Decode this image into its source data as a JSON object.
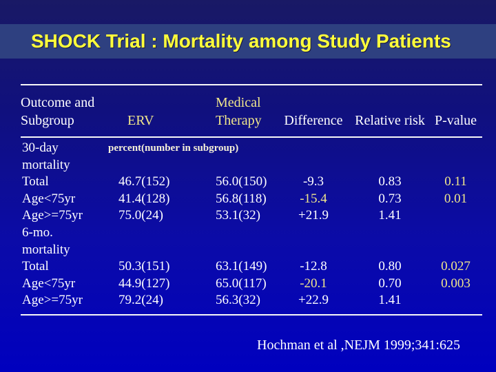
{
  "colors": {
    "background_top": "#191965",
    "background_bottom": "#0000bf",
    "title_bar": "#2e4080",
    "title_text": "#ffff3b",
    "table_text": "#ffffff",
    "accent_text": "#f0e68c",
    "note_text": "#f5f0d8"
  },
  "title": "SHOCK Trial : Mortality among Study Patients",
  "table": {
    "headers": {
      "outcome_line1": "Outcome and",
      "outcome_line2": "Subgroup",
      "erv": "ERV",
      "medical_line1": "Medical",
      "medical_line2": "Therapy",
      "difference": "Difference",
      "relative_risk": "Relative risk",
      "p_value": "P-value"
    },
    "unit_note": "percent(number in subgroup)",
    "rows": [
      {
        "label": "30-day",
        "erv": "",
        "medical": "",
        "difference": "",
        "relative_risk": "",
        "p_value": ""
      },
      {
        "label": "mortality",
        "erv": "",
        "medical": "",
        "difference": "",
        "relative_risk": "",
        "p_value": ""
      },
      {
        "label": "Total",
        "erv": "46.7(152)",
        "medical": "56.0(150)",
        "difference": "-9.3",
        "relative_risk": "0.83",
        "p_value": "0.11"
      },
      {
        "label": "Age<75yr",
        "erv": "41.4(128)",
        "medical": "56.8(118)",
        "difference": "-15.4",
        "relative_risk": "0.73",
        "p_value": "0.01"
      },
      {
        "label": "Age>=75yr",
        "erv": "75.0(24)",
        "medical": "53.1(32)",
        "difference": "+21.9",
        "relative_risk": "1.41",
        "p_value": ""
      },
      {
        "label": "6-mo.",
        "erv": "",
        "medical": "",
        "difference": "",
        "relative_risk": "",
        "p_value": ""
      },
      {
        "label": "mortality",
        "erv": "",
        "medical": "",
        "difference": "",
        "relative_risk": "",
        "p_value": ""
      },
      {
        "label": "Total",
        "erv": "50.3(151)",
        "medical": "63.1(149)",
        "difference": "-12.8",
        "relative_risk": "0.80",
        "p_value": "0.027"
      },
      {
        "label": "Age<75yr",
        "erv": "44.9(127)",
        "medical": "65.0(117)",
        "difference": "-20.1",
        "relative_risk": "0.70",
        "p_value": "0.003"
      },
      {
        "label": "Age>=75yr",
        "erv": "79.2(24)",
        "medical": "56.3(32)",
        "difference": "+22.9",
        "relative_risk": "1.41",
        "p_value": ""
      }
    ]
  },
  "citation": "Hochman et al ,NEJM 1999;341:625"
}
